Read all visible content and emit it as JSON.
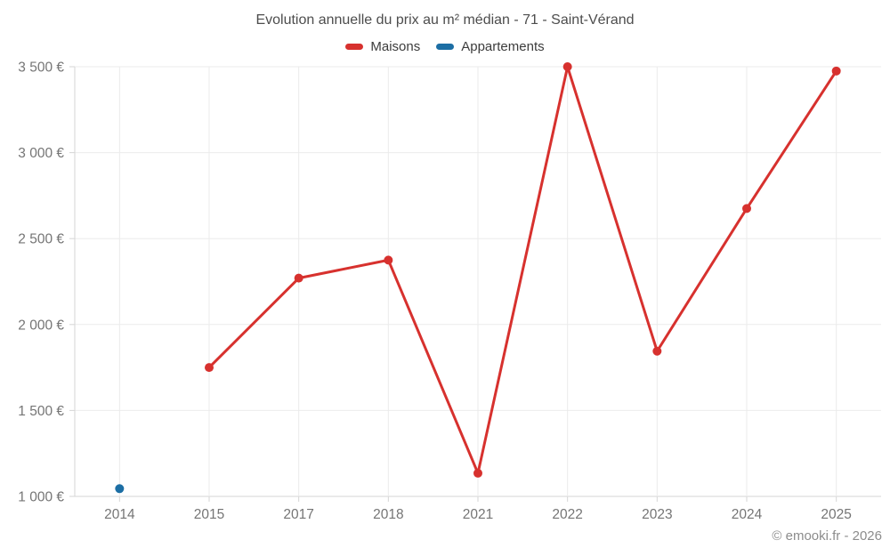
{
  "title": "Evolution annuelle du prix au m² médian - 71 - Saint-Vérand",
  "watermark": "© emooki.fr - 2026",
  "colors": {
    "maisons": "#d7312e",
    "appartements": "#1c6ea4",
    "gridline": "#ebebeb",
    "axis_line": "#d6d6d6",
    "axis_text": "#757575",
    "title_text": "#4d4d4d",
    "legend_text": "#3c3c3c",
    "background": "#ffffff"
  },
  "chart_data": {
    "type": "line",
    "title": "Evolution annuelle du prix au m² médian - 71 - Saint-Vérand",
    "categories": [
      "2014",
      "2015",
      "2017",
      "2018",
      "2021",
      "2022",
      "2023",
      "2024",
      "2025"
    ],
    "series": [
      {
        "name": "Maisons",
        "color_key": "maisons",
        "values": [
          null,
          1750,
          2270,
          2375,
          1135,
          3500,
          1845,
          2675,
          3475
        ]
      },
      {
        "name": "Appartements",
        "color_key": "appartements",
        "values": [
          1045,
          null,
          null,
          null,
          null,
          null,
          null,
          null,
          null
        ]
      }
    ],
    "ylim": [
      1000,
      3500
    ],
    "ytick_step": 500,
    "ytick_labels": [
      "1 000 €",
      "1 500 €",
      "2 000 €",
      "2 500 €",
      "3 000 €",
      "3 500 €"
    ],
    "xlabel": "",
    "ylabel": "",
    "grid": true,
    "legend_position": "top",
    "marker_radius": 5,
    "line_width": 3
  }
}
